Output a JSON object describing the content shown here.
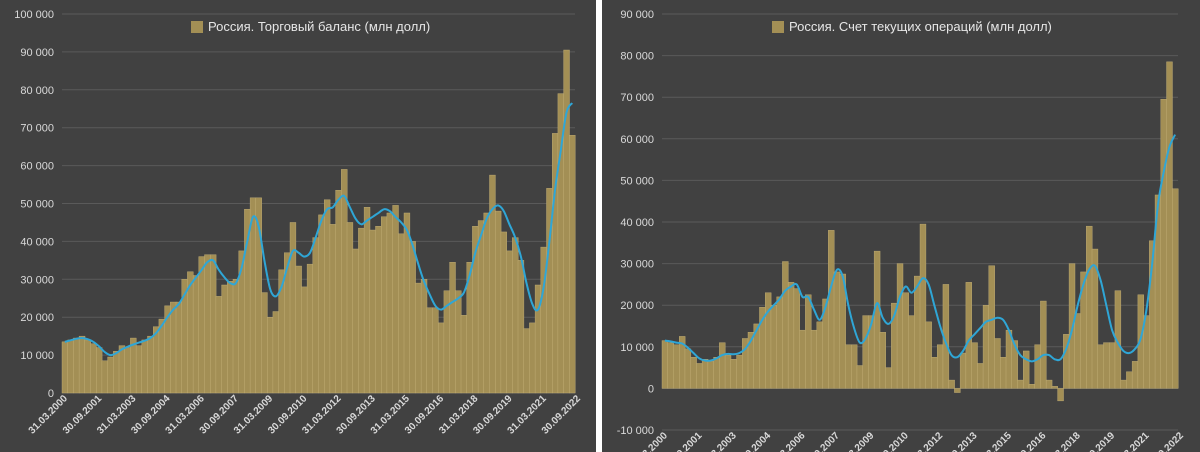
{
  "chart_data": [
    {
      "type": "bar",
      "legend": "Россия. Торговый баланс (млн долл)",
      "ylim": [
        0,
        100000
      ],
      "yticks": [
        0,
        10000,
        20000,
        30000,
        40000,
        50000,
        60000,
        70000,
        80000,
        90000,
        100000
      ],
      "ytick_labels": [
        "0",
        "10 000",
        "20 000",
        "30 000",
        "40 000",
        "50 000",
        "60 000",
        "70 000",
        "80 000",
        "90 000",
        "100 000"
      ],
      "start_quarter": "31.03.2000",
      "end_quarter": "30.09.2022",
      "xtick_labels": [
        "31.03.2000",
        "30.09.2001",
        "31.03.2003",
        "30.09.2004",
        "31.03.2006",
        "30.09.2007",
        "31.03.2009",
        "30.09.2010",
        "31.03.2012",
        "30.09.2013",
        "31.03.2015",
        "30.09.2016",
        "31.03.2018",
        "30.09.2019",
        "31.03.2021",
        "30.09.2022"
      ],
      "series": [
        {
          "kind": "bar",
          "values": [
            13500,
            14000,
            14500,
            15000,
            14000,
            13000,
            12000,
            8500,
            9500,
            11000,
            12500,
            12000,
            14500,
            12500,
            14000,
            15000,
            17500,
            19500,
            23000,
            24000,
            24000,
            30000,
            32000,
            31000,
            36000,
            36500,
            36500,
            25500,
            28500,
            29500,
            30000,
            37500,
            48500,
            51500,
            51500,
            26500,
            20000,
            21500,
            32500,
            37000,
            45000,
            33500,
            28000,
            34000,
            41000,
            47000,
            51000,
            44500,
            53500,
            59000,
            45000,
            38000,
            43500,
            49000,
            43000,
            44000,
            46500,
            47500,
            49500,
            42000,
            47500,
            40000,
            29000,
            30000,
            22500,
            22500,
            18500,
            27000,
            34500,
            27000,
            20500,
            34500,
            44000,
            45500,
            47500,
            57500,
            48000,
            42500,
            37500,
            41000,
            35000,
            17000,
            18500,
            28500,
            38500,
            54000,
            68500,
            79000,
            90500,
            68000
          ]
        },
        {
          "kind": "line",
          "values": [
            13500,
            13900,
            14300,
            14500,
            14200,
            13500,
            12300,
            10800,
            10000,
            10500,
            11500,
            12200,
            12800,
            13300,
            13800,
            14500,
            15800,
            17800,
            20000,
            22000,
            23500,
            26000,
            28500,
            30500,
            32500,
            34500,
            35000,
            32500,
            30500,
            29000,
            29000,
            33000,
            40000,
            46500,
            44000,
            35000,
            27500,
            25500,
            28000,
            33000,
            37500,
            37000,
            36000,
            37000,
            41000,
            45500,
            48500,
            49000,
            51000,
            52000,
            49000,
            46000,
            44500,
            45500,
            46500,
            47500,
            48500,
            48000,
            46500,
            45000,
            43000,
            39000,
            34000,
            29500,
            26000,
            23000,
            22000,
            23000,
            24000,
            25000,
            26500,
            31000,
            37000,
            41500,
            46000,
            48500,
            49500,
            48000,
            44500,
            41000,
            36000,
            29000,
            23500,
            22000,
            28000,
            40000,
            53500,
            64000,
            74000,
            76500
          ]
        }
      ]
    },
    {
      "type": "bar",
      "legend": "Россия. Счет текущих операций (млн долл)",
      "ylim": [
        -10000,
        90000
      ],
      "yticks": [
        -10000,
        0,
        10000,
        20000,
        30000,
        40000,
        50000,
        60000,
        70000,
        80000,
        90000
      ],
      "ytick_labels": [
        "-10 000",
        "0",
        "10 000",
        "20 000",
        "30 000",
        "40 000",
        "50 000",
        "60 000",
        "70 000",
        "80 000",
        "90 000"
      ],
      "start_quarter": "31.03.2000",
      "end_quarter": "30.09.2022",
      "xtick_labels": [
        "31.03.2000",
        "30.09.2001",
        "31.03.2003",
        "30.09.2004",
        "31.03.2006",
        "30.09.2007",
        "31.03.2009",
        "30.09.2010",
        "31.03.2012",
        "30.09.2013",
        "31.03.2015",
        "30.09.2016",
        "31.03.2018",
        "30.09.2019",
        "31.03.2021",
        "30.09.2022"
      ],
      "series": [
        {
          "kind": "bar",
          "values": [
            11500,
            11000,
            10500,
            12500,
            9500,
            7500,
            6000,
            7000,
            6500,
            7500,
            11000,
            8000,
            7000,
            8000,
            12000,
            13500,
            15500,
            19500,
            23000,
            20000,
            22000,
            30500,
            25500,
            24000,
            14000,
            22500,
            14000,
            16000,
            21500,
            38000,
            28000,
            27500,
            10500,
            10500,
            5500,
            17500,
            17500,
            33000,
            13500,
            5000,
            20500,
            30000,
            23000,
            17500,
            27000,
            39500,
            16000,
            7500,
            10500,
            25000,
            2000,
            -1000,
            8500,
            25500,
            11000,
            6000,
            20000,
            29500,
            12000,
            7500,
            14000,
            11500,
            2000,
            9000,
            1000,
            10500,
            21000,
            2000,
            500,
            -3000,
            13000,
            30000,
            18000,
            28000,
            39000,
            33500,
            10500,
            11000,
            11000,
            23500,
            2000,
            4000,
            6500,
            22500,
            17500,
            35500,
            46500,
            69500,
            78500,
            48000
          ]
        },
        {
          "kind": "line",
          "values": [
            11500,
            11300,
            11000,
            10800,
            9800,
            8500,
            7200,
            6700,
            6700,
            7200,
            8000,
            8300,
            8200,
            8500,
            9500,
            11500,
            14000,
            16500,
            18500,
            20000,
            21500,
            23500,
            24500,
            25000,
            22000,
            22000,
            19000,
            16500,
            19500,
            24500,
            28500,
            27000,
            20000,
            14500,
            11000,
            12000,
            15500,
            20500,
            17000,
            15500,
            17500,
            22000,
            24500,
            23000,
            24500,
            26500,
            25000,
            20000,
            15000,
            11000,
            8000,
            7500,
            9000,
            11500,
            13000,
            14500,
            16000,
            16500,
            17000,
            16500,
            14000,
            10500,
            8000,
            7000,
            6500,
            7000,
            8000,
            8000,
            7000,
            7000,
            9500,
            14000,
            20000,
            25000,
            28500,
            29500,
            26000,
            20000,
            14000,
            11000,
            9000,
            8500,
            9500,
            12000,
            19000,
            30000,
            44000,
            52000,
            58000,
            61000
          ]
        }
      ]
    }
  ]
}
